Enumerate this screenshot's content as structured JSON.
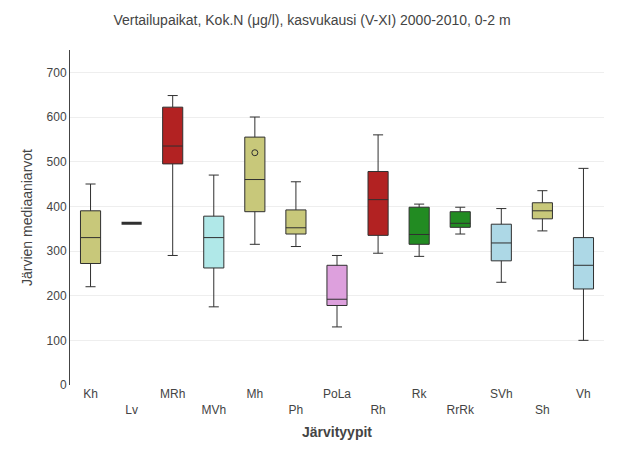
{
  "chart_data": {
    "type": "box",
    "title": "Vertailupaikat, Kok.N (μg/l), kasvukausi (V-XI) 2000-2010, 0-2 m",
    "xlabel": "Järvityypit",
    "ylabel": "Järvien mediaaniarvot",
    "categories": [
      "Kh",
      "Lv",
      "MRh",
      "MVh",
      "Mh",
      "Ph",
      "PoLa",
      "Rh",
      "Rk",
      "RrRk",
      "SVh",
      "Sh",
      "Vh"
    ],
    "boxes": [
      {
        "low": 220,
        "q1": 272,
        "median": 330,
        "q3": 390,
        "high": 450,
        "fliers": []
      },
      {
        "median": 362,
        "fliers": []
      },
      {
        "low": 290,
        "q1": 495,
        "median": 535,
        "q3": 622,
        "high": 648,
        "fliers": []
      },
      {
        "low": 175,
        "q1": 262,
        "median": 330,
        "q3": 378,
        "high": 470,
        "fliers": []
      },
      {
        "low": 315,
        "q1": 388,
        "median": 460,
        "q3": 555,
        "high": 600,
        "fliers": [
          520
        ]
      },
      {
        "low": 310,
        "q1": 338,
        "median": 352,
        "q3": 392,
        "high": 455,
        "fliers": []
      },
      {
        "low": 130,
        "q1": 178,
        "median": 192,
        "q3": 268,
        "high": 290,
        "fliers": []
      },
      {
        "low": 295,
        "q1": 335,
        "median": 415,
        "q3": 478,
        "high": 560,
        "fliers": []
      },
      {
        "low": 288,
        "q1": 315,
        "median": 337,
        "q3": 398,
        "high": 405,
        "fliers": []
      },
      {
        "low": 338,
        "q1": 353,
        "median": 362,
        "q3": 388,
        "high": 398,
        "fliers": []
      },
      {
        "low": 230,
        "q1": 278,
        "median": 318,
        "q3": 360,
        "high": 395,
        "fliers": []
      },
      {
        "low": 345,
        "q1": 372,
        "median": 390,
        "q3": 408,
        "high": 435,
        "fliers": []
      },
      {
        "low": 100,
        "q1": 215,
        "median": 268,
        "q3": 330,
        "high": 485,
        "fliers": []
      }
    ],
    "colors": [
      "#c8c87a",
      "#303030",
      "#b22222",
      "#b0e8e8",
      "#c8c87a",
      "#c8c87a",
      "#dda0dd",
      "#b22222",
      "#228b22",
      "#228b22",
      "#add8e6",
      "#c8c87a",
      "#add8e6"
    ],
    "ylim": [
      0,
      750
    ],
    "yticks": [
      0,
      100,
      200,
      300,
      400,
      500,
      600,
      700
    ],
    "grid": true
  }
}
